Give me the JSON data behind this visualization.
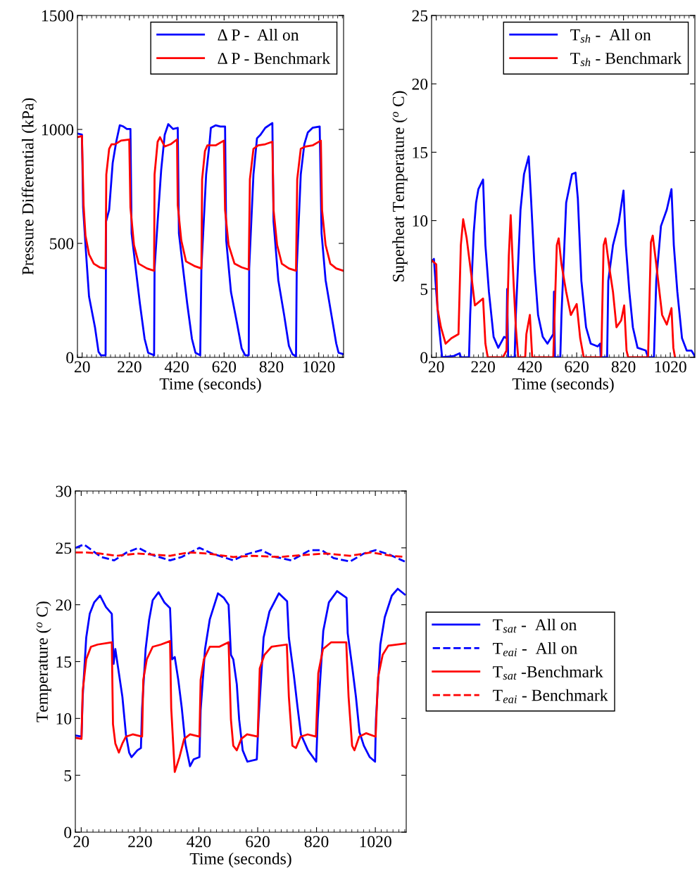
{
  "chart_data": [
    {
      "type": "line",
      "xlabel": "Time (seconds)",
      "ylabel": "Pressure Differential (kPa)",
      "xlim": [
        0,
        1125
      ],
      "xticks": [
        20,
        220,
        420,
        620,
        820,
        1020
      ],
      "ylim": [
        0,
        1500
      ],
      "yticks": [
        0,
        500,
        1000,
        1500
      ],
      "grid": false,
      "legend": "top right",
      "series": [
        {
          "name": "Δ P -  All on",
          "color": "#0000ff",
          "line_style": "solid",
          "x": [
            0,
            19,
            24,
            34,
            49,
            74,
            89,
            99,
            119,
            121,
            134,
            149,
            164,
            179,
            194,
            209,
            224,
            229,
            244,
            264,
            284,
            299,
            324,
            326,
            339,
            354,
            369,
            384,
            404,
            424,
            429,
            444,
            464,
            484,
            499,
            519,
            524,
            544,
            559,
            564,
            584,
            604,
            624,
            629,
            649,
            674,
            694,
            709,
            724,
            726,
            744,
            759,
            774,
            794,
            824,
            829,
            849,
            874,
            894,
            909,
            924,
            927,
            944,
            959,
            974,
            994,
            1024,
            1032,
            1049,
            1074,
            1094,
            1104,
            1124
          ],
          "values": [
            982,
            977,
            658,
            493,
            267,
            133,
            25,
            9,
            9,
            596,
            647,
            853,
            946,
            1018,
            1013,
            1002,
            1002,
            544,
            411,
            236,
            81,
            20,
            9,
            390,
            596,
            822,
            977,
            1023,
            1002,
            1007,
            544,
            411,
            236,
            81,
            20,
            9,
            390,
            802,
            946,
            1007,
            1018,
            1013,
            1013,
            513,
            287,
            153,
            40,
            9,
            9,
            390,
            802,
            961,
            977,
            1007,
            1028,
            596,
            339,
            184,
            50,
            14,
            4,
            390,
            802,
            935,
            987,
            1007,
            1013,
            544,
            339,
            184,
            61,
            20,
            14
          ]
        },
        {
          "name": "Δ P - Benchmark",
          "color": "#ff0000",
          "line_style": "solid",
          "x": [
            0,
            19,
            26,
            34,
            49,
            69,
            94,
            119,
            122,
            134,
            144,
            159,
            184,
            219,
            224,
            239,
            259,
            294,
            324,
            326,
            339,
            349,
            369,
            394,
            421,
            424,
            439,
            459,
            494,
            524,
            527,
            539,
            549,
            584,
            619,
            624,
            639,
            664,
            694,
            724,
            729,
            744,
            764,
            794,
            824,
            829,
            844,
            864,
            894,
            924,
            929,
            944,
            964,
            994,
            1029,
            1034,
            1049,
            1069,
            1094,
            1124
          ],
          "values": [
            966,
            971,
            668,
            534,
            452,
            411,
            395,
            390,
            802,
            915,
            935,
            935,
            951,
            956,
            658,
            493,
            411,
            390,
            380,
            802,
            946,
            966,
            925,
            935,
            956,
            668,
            513,
            421,
            401,
            390,
            781,
            905,
            930,
            930,
            951,
            647,
            493,
            411,
            395,
            385,
            781,
            915,
            930,
            935,
            946,
            647,
            493,
            411,
            390,
            380,
            781,
            915,
            925,
            930,
            951,
            647,
            493,
            411,
            390,
            380
          ]
        }
      ]
    },
    {
      "type": "line",
      "xlabel": "Time (seconds)",
      "ylabel": "Superheat Temperature ($^{o}$ C)",
      "xlim": [
        0,
        1125
      ],
      "xticks": [
        20,
        220,
        420,
        620,
        820,
        1020
      ],
      "ylim": [
        0,
        25
      ],
      "yticks": [
        0,
        5,
        10,
        15,
        20,
        25
      ],
      "grid": false,
      "legend": "top right",
      "series": [
        {
          "name": "T$_{sh}$ -  All on",
          "color": "#0000ff",
          "line_style": "solid",
          "x": [
            0,
            10,
            20,
            30,
            45,
            95,
            120,
            125,
            160,
            165,
            180,
            190,
            200,
            220,
            230,
            245,
            265,
            285,
            310,
            320,
            323,
            327,
            355,
            360,
            380,
            395,
            415,
            425,
            440,
            455,
            475,
            495,
            520,
            523,
            527,
            550,
            555,
            575,
            600,
            615,
            625,
            640,
            660,
            680,
            710,
            720,
            723,
            750,
            755,
            775,
            800,
            820,
            830,
            845,
            860,
            880,
            915,
            925,
            950,
            960,
            980,
            1005,
            1025,
            1035,
            1050,
            1070,
            1090,
            1110,
            1125
          ],
          "values": [
            7.0,
            7.2,
            4.8,
            2.6,
            0,
            0.1,
            0.3,
            0,
            0,
            3.1,
            9.1,
            11.3,
            12.3,
            13.0,
            8.2,
            4.8,
            1.5,
            0.7,
            1.5,
            1.4,
            5.0,
            0,
            0,
            3.1,
            10.8,
            13.4,
            14.7,
            11.6,
            6.5,
            3.1,
            1.5,
            1.0,
            1.7,
            4.8,
            0,
            0,
            3.1,
            11.3,
            13.4,
            13.5,
            11.6,
            5.6,
            2.2,
            1.0,
            0.8,
            1.0,
            0,
            0,
            5.6,
            8.2,
            9.9,
            12.2,
            8.2,
            4.8,
            2.2,
            0.7,
            0.5,
            0,
            0,
            5.6,
            9.6,
            10.8,
            12.3,
            8.2,
            4.8,
            1.4,
            0.5,
            0.5,
            0.1
          ]
        },
        {
          "name": "T$_{sh}$ - Benchmark",
          "color": "#ff0000",
          "line_style": "solid",
          "x": [
            0,
            20,
            25,
            40,
            60,
            85,
            115,
            125,
            135,
            150,
            170,
            185,
            220,
            230,
            240,
            305,
            320,
            330,
            338,
            350,
            360,
            370,
            400,
            405,
            420,
            430,
            520,
            535,
            543,
            555,
            575,
            595,
            620,
            635,
            650,
            725,
            735,
            743,
            760,
            775,
            790,
            810,
            823,
            833,
            840,
            925,
            937,
            945,
            960,
            985,
            1005,
            1025,
            1033,
            1040
          ],
          "values": [
            7.1,
            6.8,
            3.6,
            2.2,
            1.0,
            1.4,
            1.7,
            8.2,
            10.1,
            8.7,
            6.0,
            3.8,
            4.3,
            1.0,
            0,
            0,
            0.5,
            7.4,
            10.4,
            5.6,
            2.2,
            0,
            0,
            1.7,
            3.1,
            0,
            0,
            8.2,
            8.7,
            6.8,
            4.8,
            3.1,
            3.9,
            1.4,
            0,
            0,
            8.2,
            8.7,
            6.5,
            4.8,
            2.2,
            2.7,
            3.8,
            0.5,
            0,
            0,
            8.4,
            8.9,
            6.8,
            3.1,
            2.4,
            3.6,
            0.7,
            0
          ]
        }
      ]
    },
    {
      "type": "line",
      "xlabel": "Time (seconds)",
      "ylabel": "Temperature ($^{o}$ C)",
      "xlim": [
        0,
        1125
      ],
      "xticks": [
        20,
        220,
        420,
        620,
        820,
        1020
      ],
      "ylim": [
        0,
        30
      ],
      "yticks": [
        0,
        5,
        10,
        15,
        20,
        25,
        30
      ],
      "grid": false,
      "legend": "right",
      "series": [
        {
          "name": "T$_{sat}$ -  All on",
          "color": "#0000ff",
          "line_style": "solid",
          "x": [
            1,
            21,
            25,
            37,
            49,
            64,
            84,
            104,
            124,
            130,
            136,
            148,
            160,
            172,
            183,
            191,
            211,
            223,
            227,
            239,
            251,
            263,
            283,
            303,
            322,
            329,
            338,
            350,
            362,
            374,
            390,
            402,
            422,
            426,
            441,
            457,
            485,
            505,
            521,
            529,
            537,
            549,
            557,
            569,
            585,
            617,
            623,
            640,
            660,
            692,
            720,
            726,
            743,
            755,
            767,
            791,
            819,
            824,
            843,
            862,
            890,
            922,
            926,
            942,
            954,
            966,
            981,
            1001,
            1019,
            1022,
            1037,
            1052,
            1076,
            1096,
            1120
          ],
          "values": [
            8.5,
            8.4,
            11.9,
            17.1,
            19.2,
            20.2,
            20.8,
            19.8,
            19.2,
            14.8,
            16.1,
            14.0,
            11.9,
            8.6,
            7.0,
            6.6,
            7.2,
            7.4,
            10.9,
            16.1,
            18.7,
            20.4,
            21.1,
            20.2,
            19.7,
            15.2,
            15.4,
            13.4,
            10.9,
            7.8,
            5.8,
            6.4,
            6.6,
            10.7,
            16.1,
            18.7,
            21.0,
            20.6,
            20.0,
            15.6,
            15.2,
            13.0,
            9.9,
            7.2,
            6.2,
            6.4,
            9.9,
            17.1,
            19.4,
            21.0,
            20.3,
            17.1,
            13.8,
            11.1,
            8.6,
            7.2,
            6.2,
            9.9,
            17.7,
            20.2,
            21.2,
            20.6,
            17.5,
            14.4,
            11.9,
            8.8,
            7.6,
            6.6,
            6.2,
            9.9,
            16.5,
            18.9,
            20.8,
            21.4,
            20.9
          ]
        },
        {
          "name": "T$_{eai}$ -  All on",
          "color": "#0000ff",
          "line_style": "dashed",
          "x": [
            1,
            29,
            56,
            88,
            132,
            175,
            215,
            259,
            322,
            362,
            422,
            465,
            537,
            577,
            632,
            680,
            735,
            798,
            838,
            878,
            934,
            981,
            1021,
            1068,
            1120
          ],
          "values": [
            25.0,
            25.3,
            24.8,
            24.2,
            23.9,
            24.6,
            25.0,
            24.4,
            23.9,
            24.2,
            25.0,
            24.5,
            23.9,
            24.4,
            24.8,
            24.2,
            23.9,
            24.8,
            24.8,
            24.1,
            23.8,
            24.5,
            24.8,
            24.4,
            23.8
          ]
        },
        {
          "name": "T$_{sat}$ -Benchmark",
          "color": "#ff0000",
          "line_style": "solid",
          "x": [
            1,
            21,
            25,
            37,
            53,
            76,
            124,
            128,
            136,
            148,
            160,
            172,
            195,
            227,
            231,
            243,
            263,
            291,
            322,
            326,
            338,
            354,
            370,
            390,
            422,
            426,
            437,
            457,
            489,
            521,
            529,
            537,
            549,
            564,
            584,
            620,
            627,
            643,
            667,
            719,
            726,
            738,
            750,
            766,
            790,
            818,
            826,
            842,
            870,
            921,
            929,
            941,
            949,
            965,
            989,
            1021,
            1029,
            1045,
            1064,
            1124
          ],
          "values": [
            8.3,
            8.2,
            12.4,
            15.2,
            16.3,
            16.5,
            16.7,
            9.5,
            7.8,
            7.0,
            7.8,
            8.4,
            8.6,
            8.4,
            13.4,
            15.2,
            16.3,
            16.5,
            16.8,
            10.9,
            5.3,
            6.6,
            8.2,
            8.6,
            8.4,
            13.4,
            15.2,
            16.3,
            16.3,
            16.7,
            9.9,
            7.6,
            7.2,
            8.2,
            8.6,
            8.4,
            14.4,
            15.6,
            16.3,
            16.5,
            11.9,
            7.6,
            7.4,
            8.4,
            8.6,
            8.4,
            14.0,
            16.1,
            16.7,
            16.7,
            11.9,
            7.6,
            7.2,
            8.4,
            8.7,
            8.4,
            13.6,
            15.6,
            16.4,
            16.6
          ]
        },
        {
          "name": "T$_{eai}$ - Benchmark",
          "color": "#ff0000",
          "line_style": "dashed",
          "x": [
            1,
            37,
            84,
            140,
            211,
            267,
            322,
            386,
            449,
            537,
            601,
            696,
            743,
            790,
            854,
            934,
            1005,
            1076,
            1120
          ],
          "values": [
            24.6,
            24.6,
            24.5,
            24.3,
            24.5,
            24.4,
            24.3,
            24.6,
            24.5,
            24.2,
            24.3,
            24.2,
            24.3,
            24.4,
            24.5,
            24.3,
            24.6,
            24.3,
            24.2
          ]
        }
      ]
    }
  ]
}
